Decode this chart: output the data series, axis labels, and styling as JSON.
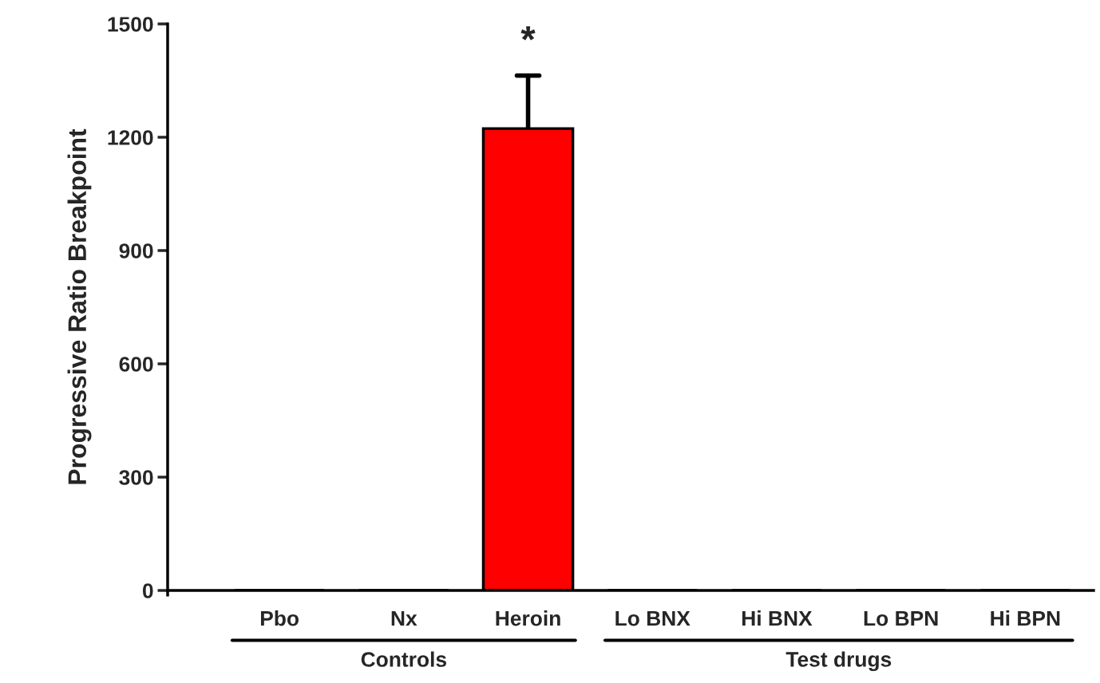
{
  "chart_data": {
    "type": "bar",
    "ylabel": "Progressive Ratio Breakpoint",
    "categories": [
      "Pbo",
      "Nx",
      "Heroin",
      "Lo BNX",
      "Hi BNX",
      "Lo BPN",
      "Hi BPN"
    ],
    "values": [
      0,
      0,
      1223,
      0,
      0,
      0,
      0
    ],
    "colors": [
      "#ff0000",
      "#ff0000",
      "#ff0000",
      "#ff0000",
      "#ff0000",
      "#ff0000",
      "#ff0000"
    ],
    "errors": [
      null,
      null,
      140,
      null,
      null,
      null,
      null
    ],
    "ylim": [
      0,
      1500
    ],
    "yticks": [
      0,
      300,
      600,
      900,
      1200,
      1500
    ],
    "grid": false,
    "legend": false,
    "annotations": [
      "*",
      "Controls",
      "Test drugs"
    ]
  }
}
